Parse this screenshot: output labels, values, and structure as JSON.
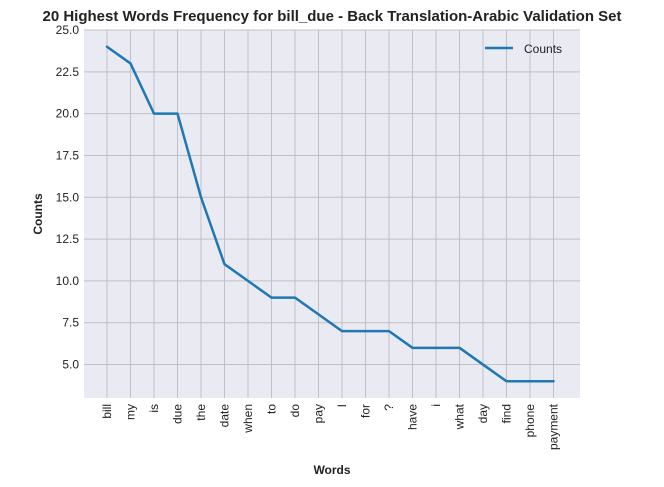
{
  "chart_data": {
    "type": "line",
    "title": "20 Highest Words Frequency for bill_due - Back Translation-Arabic Validation Set",
    "xlabel": "Words",
    "ylabel": "Counts",
    "categories": [
      "bill",
      "my",
      "is",
      "due",
      "the",
      "date",
      "when",
      "to",
      "do",
      "pay",
      "I",
      "for",
      "?",
      "have",
      "i",
      "what",
      "day",
      "find",
      "phone",
      "payment"
    ],
    "series": [
      {
        "name": "Counts",
        "values": [
          24,
          23,
          20,
          20,
          15,
          11,
          10,
          9,
          9,
          8,
          7,
          7,
          7,
          6,
          6,
          6,
          5,
          4,
          4,
          4
        ]
      }
    ],
    "ylim": [
      3.0,
      25.0
    ],
    "yticks": [
      5.0,
      7.5,
      10.0,
      12.5,
      15.0,
      17.5,
      20.0,
      22.5,
      25.0
    ],
    "ytick_labels": [
      "5.0",
      "7.5",
      "10.0",
      "12.5",
      "15.0",
      "17.5",
      "20.0",
      "22.5",
      "25.0"
    ],
    "grid": true,
    "legend_position": "top-right",
    "colors": {
      "line": "#1f77b4",
      "background": "#eaeaf2",
      "grid": "#c0c0c8"
    }
  }
}
